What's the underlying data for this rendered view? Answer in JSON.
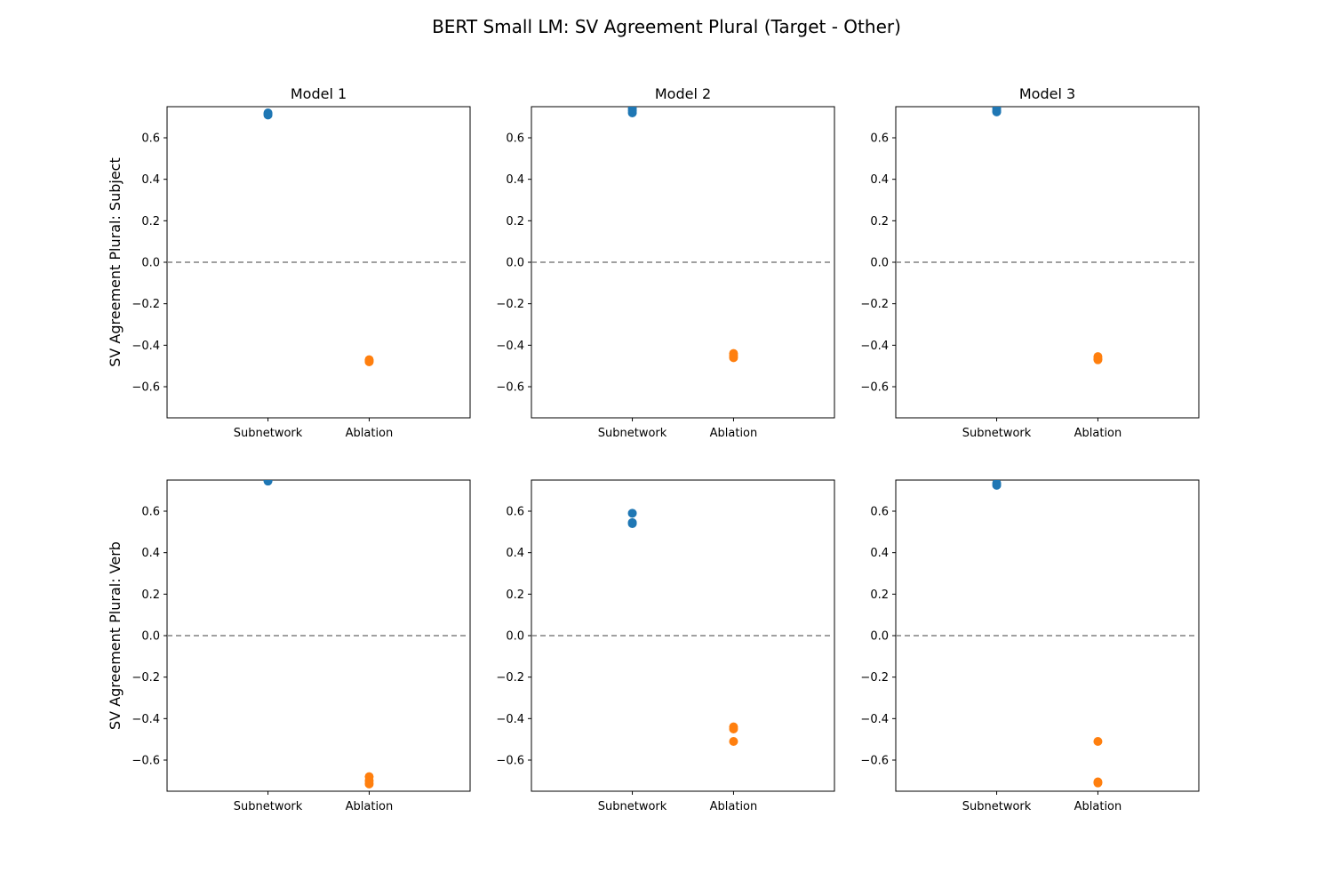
{
  "title": "BERT Small LM: SV Agreement Plural (Target - Other)",
  "chart_data": {
    "type": "scatter",
    "title": "BERT Small LM: SV Agreement Plural (Target - Other)",
    "categories": [
      "Subnetwork",
      "Ablation"
    ],
    "colors": {
      "Subnetwork": "#1f77b4",
      "Ablation": "#ff7f0e"
    },
    "ylim": [
      -0.75,
      0.75
    ],
    "yticks": [
      -0.6,
      -0.4,
      -0.2,
      0.0,
      0.2,
      0.4,
      0.6
    ],
    "ytick_labels": [
      "−0.6",
      "−0.4",
      "−0.2",
      "0.0",
      "0.2",
      "0.4",
      "0.6"
    ],
    "reference_line": {
      "y": 0.0,
      "style": "dashed",
      "color": "#808080"
    },
    "grid": false,
    "columns": [
      "Model 1",
      "Model 2",
      "Model 3"
    ],
    "rows": [
      "SV Agreement Plural: Subject",
      "SV Agreement Plural: Verb"
    ],
    "panels": [
      {
        "row": 0,
        "col": 0,
        "title": "Model 1",
        "ylabel": "SV Agreement Plural: Subject",
        "points": {
          "Subnetwork": [
            0.72,
            0.71,
            0.715
          ],
          "Ablation": [
            -0.47,
            -0.48,
            -0.475
          ]
        }
      },
      {
        "row": 0,
        "col": 1,
        "title": "Model 2",
        "ylabel": "",
        "points": {
          "Subnetwork": [
            0.74,
            0.72,
            0.73
          ],
          "Ablation": [
            -0.44,
            -0.46,
            -0.45
          ]
        }
      },
      {
        "row": 0,
        "col": 2,
        "title": "Model 3",
        "ylabel": "",
        "points": {
          "Subnetwork": [
            0.74,
            0.725,
            0.73
          ],
          "Ablation": [
            -0.455,
            -0.47,
            -0.465
          ]
        }
      },
      {
        "row": 1,
        "col": 0,
        "title": "",
        "ylabel": "SV Agreement Plural: Verb",
        "points": {
          "Subnetwork": [
            0.75,
            0.745
          ],
          "Ablation": [
            -0.68,
            -0.7,
            -0.715
          ]
        }
      },
      {
        "row": 1,
        "col": 1,
        "title": "",
        "ylabel": "",
        "points": {
          "Subnetwork": [
            0.59,
            0.545,
            0.54
          ],
          "Ablation": [
            -0.44,
            -0.45,
            -0.51
          ]
        }
      },
      {
        "row": 1,
        "col": 2,
        "title": "",
        "ylabel": "",
        "points": {
          "Subnetwork": [
            0.735,
            0.725
          ],
          "Ablation": [
            -0.51,
            -0.705,
            -0.71
          ]
        }
      }
    ]
  }
}
